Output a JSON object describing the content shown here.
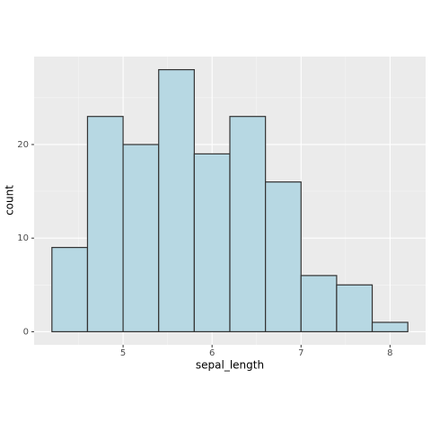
{
  "chart_data": {
    "type": "histogram",
    "x_label": "sepal_length",
    "y_label": "count",
    "bins": [
      4.2,
      4.6,
      5.0,
      5.4,
      5.8,
      6.2,
      6.6,
      7.0,
      7.4,
      7.8,
      8.2
    ],
    "values": [
      9,
      23,
      20,
      28,
      19,
      23,
      16,
      6,
      5,
      1
    ],
    "color": "#b7d8e3",
    "edge_color": "#333333",
    "xlim": [
      4.0,
      8.4
    ],
    "ylim": [
      -1.4,
      29.4
    ],
    "xticks": [
      5,
      6,
      7,
      8
    ],
    "yticks": [
      0,
      10,
      20
    ],
    "grid": true
  }
}
